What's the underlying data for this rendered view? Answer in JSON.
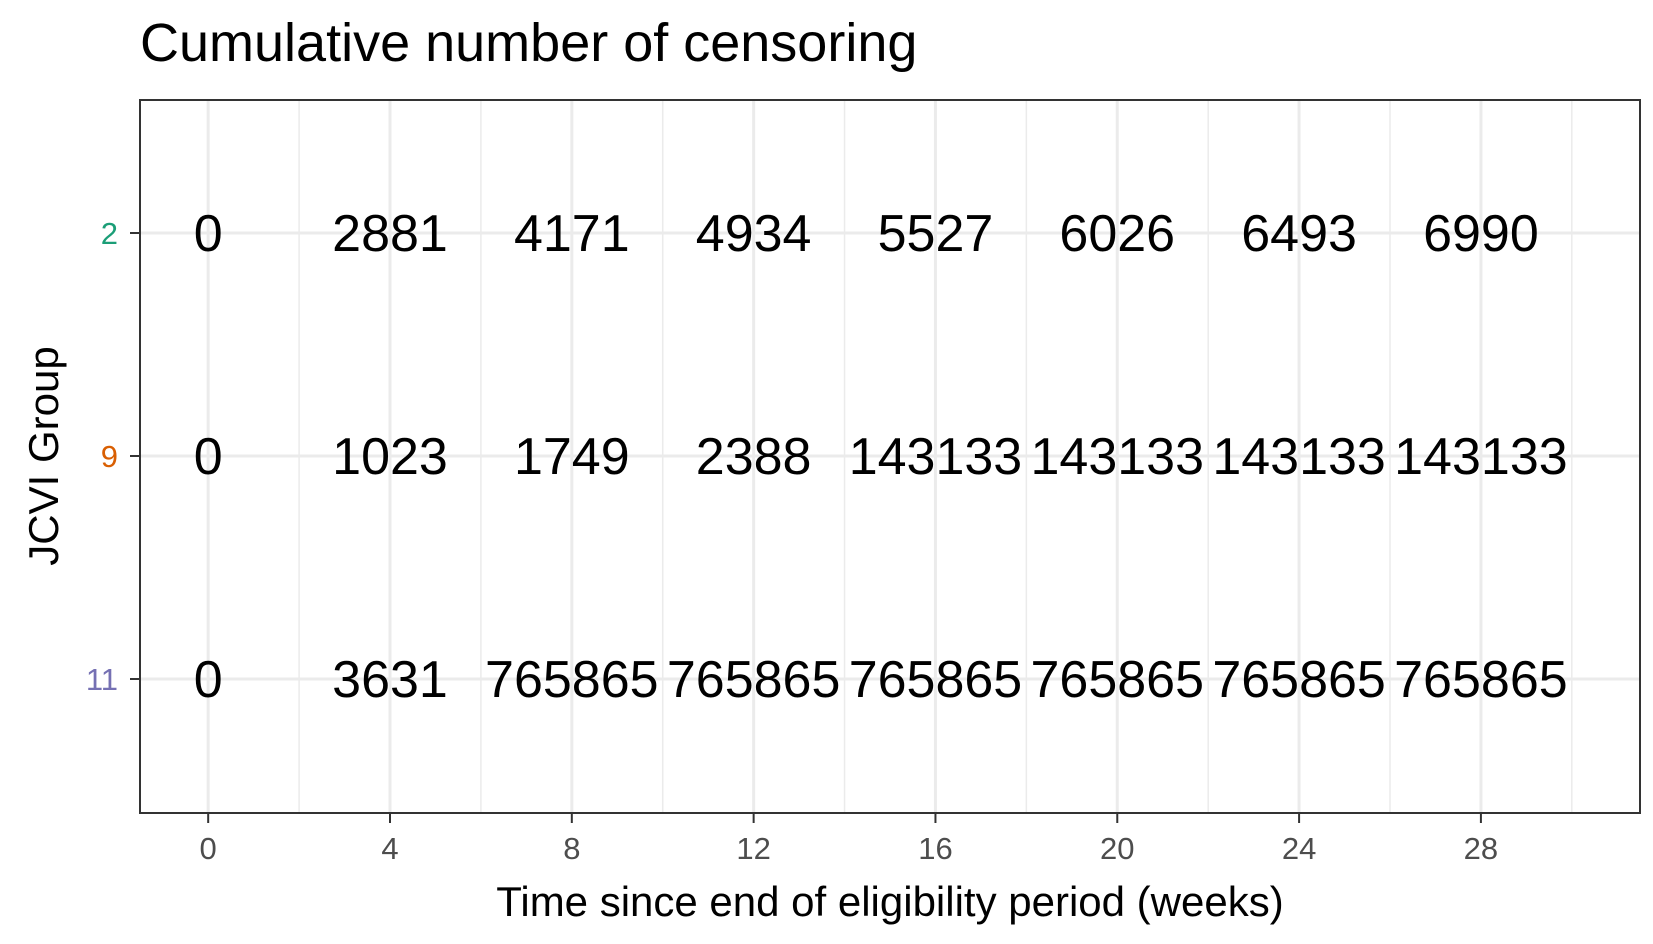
{
  "chart_data": {
    "type": "table",
    "title": "Cumulative number of censoring",
    "xlabel": "Time since end of eligibility period (weeks)",
    "ylabel": "JCVI Group",
    "x": [
      0,
      4,
      8,
      12,
      16,
      20,
      24,
      28
    ],
    "xticks": [
      "0",
      "4",
      "8",
      "12",
      "16",
      "20",
      "24",
      "28"
    ],
    "xlim": [
      -1.5,
      31.5
    ],
    "groups": [
      {
        "label": "2",
        "color": "#1b9e77",
        "values": [
          "0",
          "2881",
          "4171",
          "4934",
          "5527",
          "6026",
          "6493",
          "6990"
        ]
      },
      {
        "label": "9",
        "color": "#d95f02",
        "values": [
          "0",
          "1023",
          "1749",
          "2388",
          "143133",
          "143133",
          "143133",
          "143133"
        ]
      },
      {
        "label": "11",
        "color": "#7570b3",
        "values": [
          "0",
          "3631",
          "765865",
          "765865",
          "765865",
          "765865",
          "765865",
          "765865"
        ]
      }
    ],
    "grid": true
  }
}
